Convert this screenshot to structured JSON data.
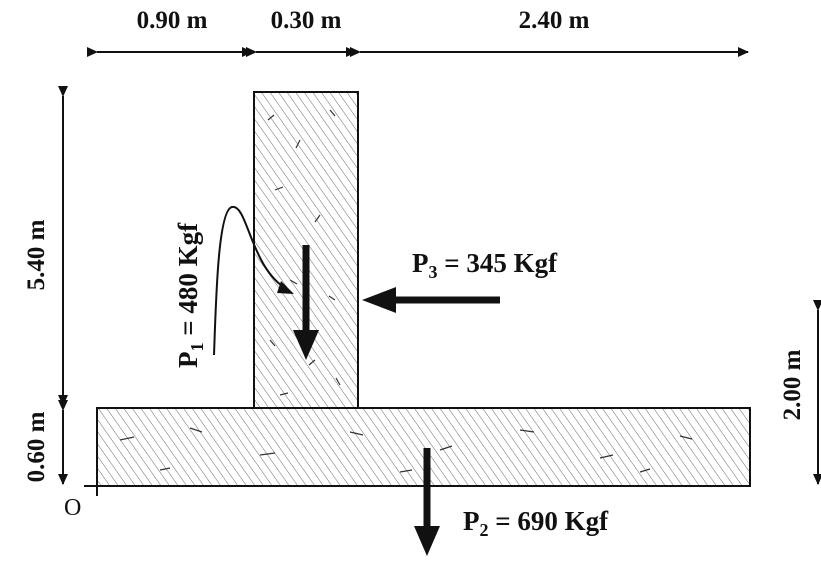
{
  "dimensions": {
    "width_left": "0.90 m",
    "width_stem": "0.30 m",
    "width_right": "2.40 m",
    "height_stem": "5.40 m",
    "height_base": "0.60 m",
    "height_p3": "2.00 m"
  },
  "forces": {
    "p1": {
      "symbol": "P",
      "sub": "1",
      "value": " = 480 Kgf"
    },
    "p2": {
      "symbol": "P",
      "sub": "2",
      "value": " = 690 Kgf"
    },
    "p3": {
      "symbol": "P",
      "sub": "3",
      "value": " = 345 Kgf"
    }
  },
  "origin_label": "O",
  "colors": {
    "ink": "#111111",
    "hatch": "#555555",
    "fill": "#ffffff"
  }
}
